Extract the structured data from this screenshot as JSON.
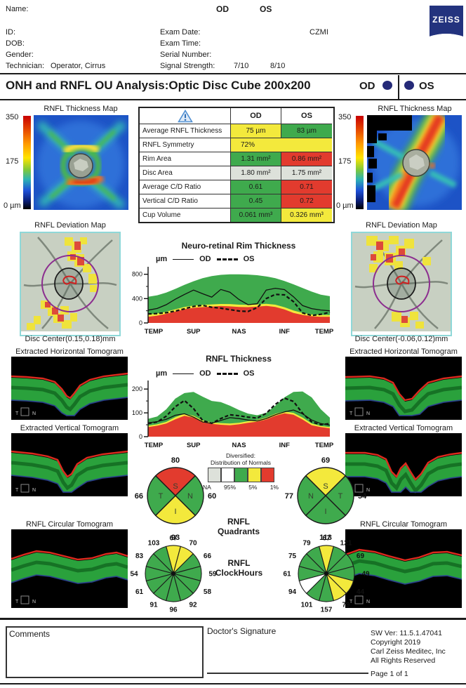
{
  "palette": {
    "green": "#3faa4d",
    "yellow": "#f3e93c",
    "red": "#e23b2e",
    "gray": "#dde1da",
    "white": "#ffffff",
    "navy": "#252a78"
  },
  "header": {
    "name_label": "Name:",
    "id_label": "ID:",
    "dob_label": "DOB:",
    "gender_label": "Gender:",
    "technician_label": "Technician:",
    "technician_value": "Operator, Cirrus",
    "od_label": "OD",
    "os_label": "OS",
    "exam_date_label": "Exam Date:",
    "exam_time_label": "Exam Time:",
    "serial_number_label": "Serial Number:",
    "signal_strength_label": "Signal Strength:",
    "signal_strength_od": "7/10",
    "signal_strength_os": "8/10",
    "device_code": "CZMI",
    "logo_text": "ZEISS"
  },
  "title_bar": {
    "title": "ONH and RNFL OU Analysis:Optic Disc Cube 200x200",
    "od_label": "OD",
    "os_label": "OS"
  },
  "table": {
    "header": {
      "od": "OD",
      "os": "OS"
    },
    "rows": [
      {
        "label": "Average RNFL Thickness",
        "od": "75 µm",
        "od_color": "yellow",
        "os": "83 µm",
        "os_color": "green"
      },
      {
        "label": "RNFL Symmetry",
        "value": "72%",
        "color": "yellow"
      },
      {
        "label": "Rim Area",
        "od": "1.31 mm²",
        "od_color": "green",
        "os": "0.86 mm²",
        "os_color": "red"
      },
      {
        "label": "Disc Area",
        "od": "1.80 mm²",
        "od_color": "gray",
        "os": "1.75 mm²",
        "os_color": "gray"
      },
      {
        "label": "Average C/D Ratio",
        "od": "0.61",
        "od_color": "green",
        "os": "0.71",
        "os_color": "red"
      },
      {
        "label": "Vertical C/D Ratio",
        "od": "0.45",
        "od_color": "green",
        "os": "0.72",
        "os_color": "red"
      },
      {
        "label": "Cup Volume",
        "od": "0.061 mm³",
        "od_color": "green",
        "os": "0.326 mm³",
        "os_color": "yellow"
      }
    ]
  },
  "left_column": {
    "thickness_map_title": "RNFL Thickness Map",
    "scale_top": "350",
    "scale_mid": "175",
    "scale_bottom": "0 µm",
    "deviation_map_title": "RNFL Deviation Map",
    "disc_center": "Disc Center(0.15,0.18)mm",
    "horizontal_tomogram_title": "Extracted Horizontal Tomogram",
    "vertical_tomogram_title": "Extracted Vertical Tomogram",
    "circular_tomogram_title": "RNFL Circular Tomogram",
    "marker_t": "T",
    "marker_n": "N"
  },
  "right_column": {
    "thickness_map_title": "RNFL Thickness Map",
    "scale_top": "350",
    "scale_mid": "175",
    "scale_bottom": "0 µm",
    "deviation_map_title": "RNFL Deviation Map",
    "disc_center": "Disc Center(-0.06,0.12)mm",
    "horizontal_tomogram_title": "Extracted Horizontal Tomogram",
    "vertical_tomogram_title": "Extracted Vertical Tomogram",
    "circular_tomogram_title": "RNFL Circular Tomogram",
    "marker_t": "T",
    "marker_n": "N"
  },
  "chart_data": [
    {
      "type": "area+line",
      "title": "Neuro-retinal Rim Thickness",
      "ylabel": "µm",
      "legend": [
        "OD",
        "OS"
      ],
      "yticks": [
        0,
        400,
        800
      ],
      "ylim": [
        0,
        900
      ],
      "categories": [
        "TEMP",
        "SUP",
        "NAS",
        "INF",
        "TEMP"
      ],
      "series": [
        {
          "name": "green_top",
          "values": [
            430,
            455,
            500,
            560,
            625,
            685,
            735,
            770,
            790,
            800,
            800,
            795,
            785,
            765,
            735,
            690,
            635,
            575,
            515,
            465,
            440
          ]
        },
        {
          "name": "yellow_top",
          "values": [
            135,
            155,
            185,
            225,
            262,
            285,
            298,
            305,
            312,
            310,
            300,
            298,
            305,
            315,
            300,
            258,
            205,
            165,
            140,
            132,
            130
          ]
        },
        {
          "name": "red_top",
          "values": [
            100,
            120,
            150,
            188,
            225,
            248,
            260,
            268,
            278,
            272,
            262,
            260,
            268,
            280,
            262,
            222,
            165,
            132,
            110,
            102,
            100
          ]
        },
        {
          "name": "OD",
          "values": [
            210,
            238,
            300,
            390,
            468,
            540,
            480,
            425,
            550,
            505,
            385,
            300,
            315,
            540,
            570,
            548,
            430,
            285,
            235,
            212,
            200
          ]
        },
        {
          "name": "OS",
          "values": [
            148,
            155,
            168,
            195,
            232,
            272,
            288,
            258,
            242,
            218,
            196,
            188,
            252,
            400,
            470,
            462,
            350,
            165,
            122,
            142,
            175
          ]
        }
      ]
    },
    {
      "type": "area+line",
      "title": "RNFL Thickness",
      "ylabel": "µm",
      "legend": [
        "OD",
        "OS"
      ],
      "yticks": [
        0,
        100,
        200
      ],
      "ylim": [
        0,
        230
      ],
      "categories": [
        "TEMP",
        "SUP",
        "NAS",
        "INF",
        "TEMP"
      ],
      "series": [
        {
          "name": "green_top",
          "values": [
            75,
            85,
            115,
            160,
            183,
            188,
            168,
            150,
            145,
            130,
            112,
            97,
            90,
            100,
            130,
            165,
            188,
            190,
            165,
            115,
            80
          ]
        },
        {
          "name": "yellow_top",
          "values": [
            46,
            52,
            62,
            82,
            96,
            88,
            68,
            60,
            57,
            55,
            58,
            65,
            70,
            80,
            96,
            106,
            100,
            80,
            55,
            45,
            40
          ]
        },
        {
          "name": "red_top",
          "values": [
            40,
            46,
            55,
            73,
            88,
            80,
            60,
            54,
            50,
            48,
            52,
            58,
            63,
            72,
            88,
            98,
            92,
            72,
            48,
            40,
            35
          ]
        },
        {
          "name": "OD",
          "values": [
            58,
            63,
            73,
            90,
            96,
            82,
            62,
            56,
            68,
            80,
            76,
            70,
            66,
            76,
            92,
            104,
            112,
            96,
            70,
            55,
            48
          ]
        },
        {
          "name": "OS",
          "values": [
            55,
            62,
            86,
            126,
            152,
            118,
            68,
            56,
            76,
            92,
            88,
            82,
            78,
            98,
            136,
            162,
            148,
            98,
            62,
            50,
            55
          ]
        }
      ]
    }
  ],
  "normals_legend": {
    "title_line1": "Diversified:",
    "title_line2": "Distribution of Normals",
    "boxes": [
      "gray",
      "white",
      "green",
      "yellow",
      "red"
    ],
    "labels": [
      "NA",
      "95%",
      "5%",
      "1%"
    ]
  },
  "quadrants": {
    "label_line1": "RNFL",
    "label_line2": "Quadrants",
    "od": {
      "top": {
        "letter": "S",
        "value": "80",
        "color": "red"
      },
      "right": {
        "letter": "N",
        "value": "60",
        "color": "green"
      },
      "bottom": {
        "letter": "I",
        "value": "93",
        "color": "yellow"
      },
      "left": {
        "letter": "T",
        "value": "66",
        "color": "green"
      }
    },
    "os": {
      "top": {
        "letter": "S",
        "value": "69",
        "color": "yellow"
      },
      "right": {
        "letter": "T",
        "value": "54",
        "color": "green"
      },
      "bottom": {
        "letter": "I",
        "value": "113",
        "color": "green"
      },
      "left": {
        "letter": "N",
        "value": "77",
        "color": "green"
      }
    }
  },
  "clock_hours": {
    "label_line1": "RNFL",
    "label_line2": "ClockHours",
    "od": {
      "values": [
        67,
        70,
        66,
        59,
        58,
        92,
        96,
        91,
        61,
        54,
        83,
        103
      ],
      "colors": [
        "yellow",
        "yellow",
        "green",
        "green",
        "green",
        "green",
        "green",
        "green",
        "green",
        "green",
        "green",
        "green"
      ]
    },
    "os": {
      "values": [
        67,
        121,
        69,
        49,
        44,
        79,
        157,
        101,
        94,
        61,
        75,
        79
      ],
      "colors": [
        "yellow",
        "green",
        "green",
        "green",
        "yellow",
        "yellow",
        "green",
        "green",
        "white",
        "green",
        "green",
        "green"
      ]
    }
  },
  "footer": {
    "comments_label": "Comments",
    "signature_label": "Doctor's Signature",
    "sw_version": "SW Ver: 11.5.1.47041",
    "copyright": "Copyright 2019",
    "company": "Carl Zeiss Meditec, Inc",
    "rights": "All Rights Reserved",
    "page": "Page 1 of 1"
  }
}
